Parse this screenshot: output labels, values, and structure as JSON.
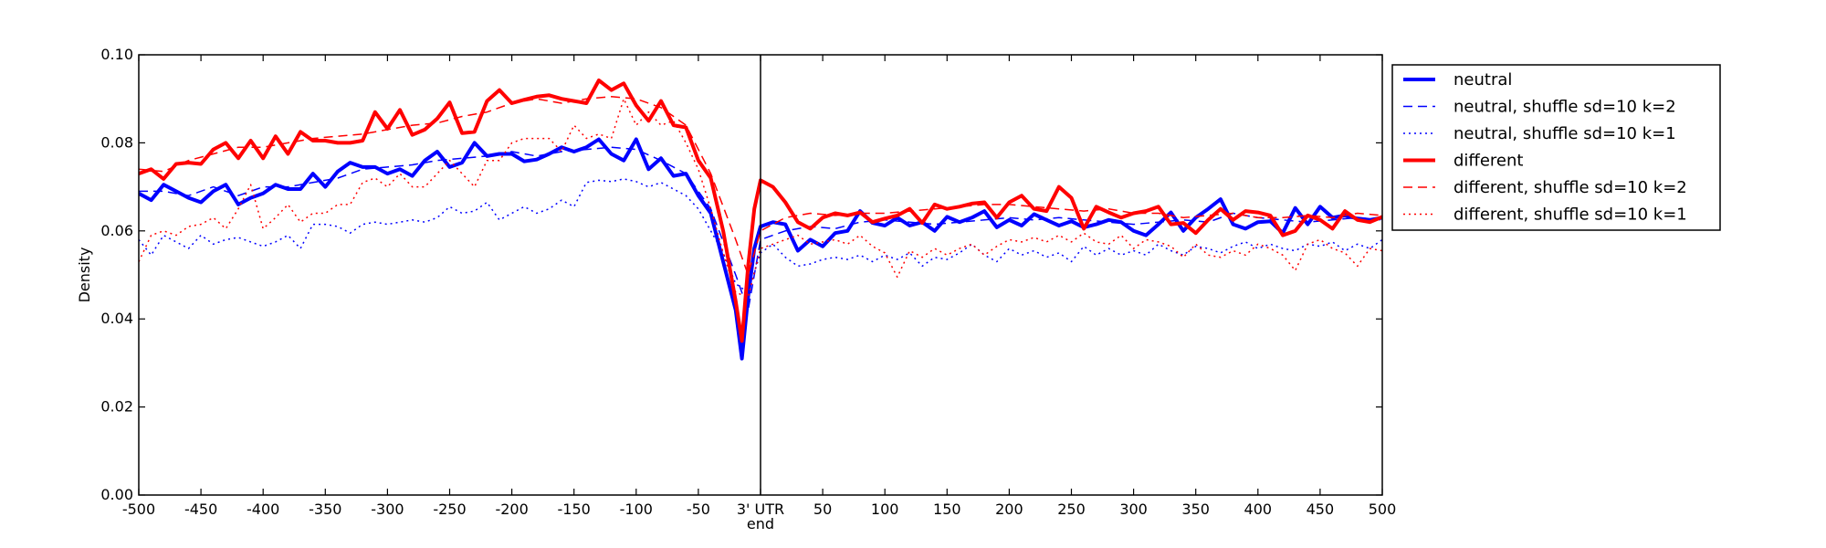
{
  "chart_data": {
    "type": "line",
    "title": "",
    "xlabel": "",
    "ylabel": "Density",
    "xlim": [
      -500,
      500
    ],
    "ylim": [
      0.0,
      0.1
    ],
    "x_ticks": [
      -500,
      -450,
      -400,
      -350,
      -300,
      -250,
      -200,
      -150,
      -100,
      -50,
      0,
      50,
      100,
      150,
      200,
      250,
      300,
      350,
      400,
      450,
      500
    ],
    "x_tick_labels": [
      "-500",
      "-450",
      "-400",
      "-350",
      "-300",
      "-250",
      "-200",
      "-150",
      "-100",
      "-50",
      "3' UTR",
      "50",
      "100",
      "150",
      "200",
      "250",
      "300",
      "350",
      "400",
      "450",
      "500"
    ],
    "x_center_sublabel": "end",
    "y_ticks": [
      0.0,
      0.02,
      0.04,
      0.06,
      0.08,
      0.1
    ],
    "y_tick_labels": [
      "0.00",
      "0.02",
      "0.04",
      "0.06",
      "0.08",
      "0.10"
    ],
    "vertical_line_at": 0,
    "grid": false,
    "legend_position": "outside-right-top",
    "series": [
      {
        "name": "neutral",
        "color": "#0000ff",
        "line_style": "solid",
        "line_width": "thick",
        "x": [
          -500,
          -490,
          -480,
          -470,
          -460,
          -450,
          -440,
          -430,
          -420,
          -410,
          -400,
          -390,
          -380,
          -370,
          -360,
          -350,
          -340,
          -330,
          -320,
          -310,
          -300,
          -290,
          -280,
          -270,
          -260,
          -250,
          -240,
          -230,
          -220,
          -210,
          -200,
          -190,
          -180,
          -170,
          -160,
          -150,
          -140,
          -130,
          -120,
          -110,
          -100,
          -90,
          -80,
          -70,
          -60,
          -50,
          -40,
          -30,
          -20,
          -15,
          -10,
          -5,
          0,
          10,
          20,
          30,
          40,
          50,
          60,
          70,
          80,
          90,
          100,
          110,
          120,
          130,
          140,
          150,
          160,
          170,
          180,
          190,
          200,
          210,
          220,
          230,
          240,
          250,
          260,
          270,
          280,
          290,
          300,
          310,
          320,
          330,
          340,
          350,
          360,
          370,
          380,
          390,
          400,
          410,
          420,
          430,
          440,
          450,
          460,
          470,
          480,
          490,
          500
        ],
        "y": [
          0.0685,
          0.067,
          0.0705,
          0.069,
          0.0675,
          0.0665,
          0.069,
          0.0705,
          0.066,
          0.0675,
          0.0685,
          0.0705,
          0.0695,
          0.0695,
          0.073,
          0.07,
          0.0735,
          0.0755,
          0.0745,
          0.0745,
          0.073,
          0.074,
          0.0725,
          0.076,
          0.078,
          0.0745,
          0.0755,
          0.08,
          0.077,
          0.0775,
          0.0775,
          0.0758,
          0.0762,
          0.0775,
          0.079,
          0.078,
          0.079,
          0.0808,
          0.0775,
          0.076,
          0.0808,
          0.074,
          0.0765,
          0.0725,
          0.073,
          0.068,
          0.064,
          0.053,
          0.042,
          0.031,
          0.045,
          0.056,
          0.061,
          0.062,
          0.0615,
          0.0555,
          0.058,
          0.0565,
          0.0595,
          0.06,
          0.0645,
          0.0618,
          0.0612,
          0.063,
          0.0612,
          0.062,
          0.06,
          0.0632,
          0.062,
          0.063,
          0.0645,
          0.0608,
          0.0625,
          0.0612,
          0.0638,
          0.0625,
          0.0612,
          0.0622,
          0.0608,
          0.0615,
          0.0625,
          0.062,
          0.06,
          0.059,
          0.0615,
          0.0642,
          0.06,
          0.063,
          0.065,
          0.0672,
          0.0615,
          0.0605,
          0.062,
          0.0622,
          0.0595,
          0.0652,
          0.0615,
          0.0655,
          0.063,
          0.0635,
          0.0628,
          0.0625,
          0.063
        ]
      },
      {
        "name": "neutral, shuffle sd=10 k=2",
        "color": "#0000ff",
        "line_style": "dashed",
        "line_width": "thin",
        "x": [
          -500,
          -480,
          -460,
          -440,
          -420,
          -400,
          -380,
          -360,
          -340,
          -320,
          -300,
          -280,
          -260,
          -240,
          -220,
          -200,
          -180,
          -160,
          -140,
          -120,
          -100,
          -80,
          -60,
          -40,
          -20,
          -10,
          0,
          20,
          40,
          60,
          80,
          100,
          120,
          140,
          160,
          180,
          200,
          220,
          240,
          260,
          280,
          300,
          320,
          340,
          360,
          380,
          400,
          420,
          440,
          460,
          480,
          500
        ],
        "y": [
          0.069,
          0.069,
          0.068,
          0.07,
          0.068,
          0.07,
          0.07,
          0.071,
          0.072,
          0.074,
          0.0745,
          0.075,
          0.076,
          0.0765,
          0.077,
          0.078,
          0.077,
          0.078,
          0.0785,
          0.079,
          0.0785,
          0.076,
          0.073,
          0.065,
          0.05,
          0.042,
          0.058,
          0.06,
          0.061,
          0.0605,
          0.062,
          0.0625,
          0.062,
          0.0615,
          0.062,
          0.0625,
          0.063,
          0.0625,
          0.063,
          0.0625,
          0.062,
          0.0615,
          0.062,
          0.0625,
          0.062,
          0.064,
          0.063,
          0.0625,
          0.062,
          0.0625,
          0.063,
          0.0625
        ]
      },
      {
        "name": "neutral, shuffle sd=10 k=1",
        "color": "#0000ff",
        "line_style": "dotted",
        "line_width": "thin",
        "x": [
          -500,
          -490,
          -480,
          -470,
          -460,
          -450,
          -440,
          -430,
          -420,
          -410,
          -400,
          -390,
          -380,
          -370,
          -360,
          -350,
          -340,
          -330,
          -320,
          -310,
          -300,
          -290,
          -280,
          -270,
          -260,
          -250,
          -240,
          -230,
          -220,
          -210,
          -200,
          -190,
          -180,
          -170,
          -160,
          -150,
          -140,
          -130,
          -120,
          -110,
          -100,
          -90,
          -80,
          -70,
          -60,
          -50,
          -40,
          -30,
          -20,
          -10,
          0,
          10,
          20,
          30,
          40,
          50,
          60,
          70,
          80,
          90,
          100,
          110,
          120,
          130,
          140,
          150,
          160,
          170,
          180,
          190,
          200,
          210,
          220,
          230,
          240,
          250,
          260,
          270,
          280,
          290,
          300,
          310,
          320,
          330,
          340,
          350,
          360,
          370,
          380,
          390,
          400,
          410,
          420,
          430,
          440,
          450,
          460,
          470,
          480,
          490,
          500
        ],
        "y": [
          0.058,
          0.0545,
          0.059,
          0.0575,
          0.056,
          0.059,
          0.057,
          0.058,
          0.0585,
          0.0575,
          0.0565,
          0.0575,
          0.059,
          0.056,
          0.0615,
          0.0615,
          0.061,
          0.0595,
          0.0615,
          0.062,
          0.0615,
          0.062,
          0.0625,
          0.062,
          0.063,
          0.0655,
          0.064,
          0.0645,
          0.0665,
          0.0625,
          0.064,
          0.0655,
          0.064,
          0.065,
          0.067,
          0.0655,
          0.071,
          0.0715,
          0.0712,
          0.0718,
          0.0712,
          0.07,
          0.071,
          0.0695,
          0.068,
          0.065,
          0.06,
          0.055,
          0.048,
          0.046,
          0.055,
          0.057,
          0.054,
          0.052,
          0.0525,
          0.0535,
          0.054,
          0.0535,
          0.0545,
          0.053,
          0.0545,
          0.0535,
          0.055,
          0.052,
          0.054,
          0.0535,
          0.055,
          0.057,
          0.0545,
          0.053,
          0.056,
          0.0545,
          0.0555,
          0.054,
          0.055,
          0.053,
          0.0565,
          0.0545,
          0.056,
          0.0545,
          0.0555,
          0.0545,
          0.057,
          0.0555,
          0.0545,
          0.0565,
          0.056,
          0.055,
          0.0565,
          0.0575,
          0.056,
          0.057,
          0.056,
          0.0555,
          0.057,
          0.0565,
          0.0575,
          0.0555,
          0.057,
          0.056,
          0.058
        ]
      },
      {
        "name": "different",
        "color": "#ff0000",
        "line_style": "solid",
        "line_width": "thick",
        "x": [
          -500,
          -490,
          -480,
          -470,
          -460,
          -450,
          -440,
          -430,
          -420,
          -410,
          -400,
          -390,
          -380,
          -370,
          -360,
          -350,
          -340,
          -330,
          -320,
          -310,
          -300,
          -290,
          -280,
          -270,
          -260,
          -250,
          -240,
          -230,
          -220,
          -210,
          -200,
          -190,
          -180,
          -170,
          -160,
          -150,
          -140,
          -130,
          -120,
          -110,
          -100,
          -90,
          -80,
          -70,
          -60,
          -50,
          -40,
          -30,
          -20,
          -15,
          -10,
          -5,
          0,
          10,
          20,
          30,
          40,
          50,
          60,
          70,
          80,
          90,
          100,
          110,
          120,
          130,
          140,
          150,
          160,
          170,
          180,
          190,
          200,
          210,
          220,
          230,
          240,
          250,
          260,
          270,
          280,
          290,
          300,
          310,
          320,
          330,
          340,
          350,
          360,
          370,
          380,
          390,
          400,
          410,
          420,
          430,
          440,
          450,
          460,
          470,
          480,
          490,
          500
        ],
        "y": [
          0.073,
          0.074,
          0.0718,
          0.0752,
          0.0755,
          0.0752,
          0.0785,
          0.08,
          0.0765,
          0.0805,
          0.0765,
          0.0815,
          0.0775,
          0.0825,
          0.0805,
          0.0805,
          0.08,
          0.08,
          0.0805,
          0.087,
          0.0832,
          0.0875,
          0.0818,
          0.083,
          0.0855,
          0.0892,
          0.0822,
          0.0825,
          0.0895,
          0.092,
          0.089,
          0.0898,
          0.0905,
          0.0908,
          0.09,
          0.0895,
          0.089,
          0.0942,
          0.092,
          0.0935,
          0.0885,
          0.085,
          0.0895,
          0.084,
          0.0835,
          0.076,
          0.072,
          0.06,
          0.044,
          0.035,
          0.052,
          0.065,
          0.0715,
          0.07,
          0.0665,
          0.062,
          0.0605,
          0.063,
          0.064,
          0.0635,
          0.0642,
          0.062,
          0.0628,
          0.0635,
          0.065,
          0.0618,
          0.066,
          0.065,
          0.0655,
          0.0662,
          0.0665,
          0.063,
          0.0665,
          0.068,
          0.065,
          0.0645,
          0.07,
          0.0675,
          0.0605,
          0.0655,
          0.0642,
          0.063,
          0.064,
          0.0645,
          0.0655,
          0.0615,
          0.0618,
          0.0595,
          0.0625,
          0.065,
          0.0625,
          0.0645,
          0.0642,
          0.0635,
          0.059,
          0.06,
          0.0635,
          0.0625,
          0.0605,
          0.0645,
          0.0625,
          0.062,
          0.0632
        ]
      },
      {
        "name": "different, shuffle sd=10 k=2",
        "color": "#ff0000",
        "line_style": "dashed",
        "line_width": "thin",
        "x": [
          -500,
          -480,
          -460,
          -440,
          -420,
          -400,
          -380,
          -360,
          -340,
          -320,
          -300,
          -280,
          -260,
          -240,
          -220,
          -200,
          -180,
          -160,
          -140,
          -120,
          -100,
          -80,
          -60,
          -40,
          -20,
          -10,
          0,
          20,
          40,
          60,
          80,
          100,
          120,
          140,
          160,
          180,
          200,
          220,
          240,
          260,
          280,
          300,
          320,
          340,
          360,
          380,
          400,
          420,
          440,
          460,
          480,
          500
        ],
        "y": [
          0.074,
          0.0735,
          0.076,
          0.0775,
          0.079,
          0.079,
          0.08,
          0.081,
          0.0815,
          0.082,
          0.083,
          0.084,
          0.0845,
          0.086,
          0.087,
          0.089,
          0.09,
          0.089,
          0.09,
          0.0905,
          0.09,
          0.088,
          0.084,
          0.073,
          0.058,
          0.05,
          0.06,
          0.063,
          0.064,
          0.0635,
          0.064,
          0.064,
          0.0645,
          0.065,
          0.0655,
          0.066,
          0.066,
          0.0655,
          0.065,
          0.0645,
          0.065,
          0.064,
          0.064,
          0.063,
          0.0635,
          0.064,
          0.063,
          0.063,
          0.0635,
          0.063,
          0.064,
          0.0635
        ]
      },
      {
        "name": "different, shuffle sd=10 k=1",
        "color": "#ff0000",
        "line_style": "dotted",
        "line_width": "thin",
        "x": [
          -500,
          -490,
          -480,
          -470,
          -460,
          -450,
          -440,
          -430,
          -420,
          -410,
          -400,
          -390,
          -380,
          -370,
          -360,
          -350,
          -340,
          -330,
          -320,
          -310,
          -300,
          -290,
          -280,
          -270,
          -260,
          -250,
          -240,
          -230,
          -220,
          -210,
          -200,
          -190,
          -180,
          -170,
          -160,
          -150,
          -140,
          -130,
          -120,
          -110,
          -100,
          -90,
          -80,
          -70,
          -60,
          -50,
          -40,
          -30,
          -20,
          -10,
          0,
          10,
          20,
          30,
          40,
          50,
          60,
          70,
          80,
          90,
          100,
          110,
          120,
          130,
          140,
          150,
          160,
          170,
          180,
          190,
          200,
          210,
          220,
          230,
          240,
          250,
          260,
          270,
          280,
          290,
          300,
          310,
          320,
          330,
          340,
          350,
          360,
          370,
          380,
          390,
          400,
          410,
          420,
          430,
          440,
          450,
          460,
          470,
          480,
          490,
          500
        ],
        "y": [
          0.053,
          0.059,
          0.06,
          0.059,
          0.061,
          0.0615,
          0.063,
          0.0605,
          0.065,
          0.0705,
          0.0605,
          0.063,
          0.066,
          0.062,
          0.064,
          0.064,
          0.066,
          0.066,
          0.071,
          0.072,
          0.07,
          0.073,
          0.07,
          0.07,
          0.073,
          0.076,
          0.073,
          0.07,
          0.076,
          0.076,
          0.08,
          0.081,
          0.081,
          0.081,
          0.078,
          0.084,
          0.081,
          0.082,
          0.081,
          0.09,
          0.084,
          0.087,
          0.084,
          0.085,
          0.08,
          0.074,
          0.065,
          0.055,
          0.046,
          0.045,
          0.056,
          0.057,
          0.058,
          0.059,
          0.057,
          0.0575,
          0.058,
          0.057,
          0.059,
          0.0565,
          0.055,
          0.0495,
          0.0555,
          0.054,
          0.056,
          0.0545,
          0.056,
          0.057,
          0.0545,
          0.0565,
          0.058,
          0.0575,
          0.0585,
          0.0575,
          0.059,
          0.0575,
          0.0595,
          0.0575,
          0.057,
          0.059,
          0.056,
          0.058,
          0.0575,
          0.0565,
          0.054,
          0.057,
          0.0545,
          0.054,
          0.0555,
          0.0545,
          0.057,
          0.056,
          0.0545,
          0.051,
          0.057,
          0.058,
          0.056,
          0.055,
          0.052,
          0.056,
          0.0555
        ]
      }
    ]
  }
}
